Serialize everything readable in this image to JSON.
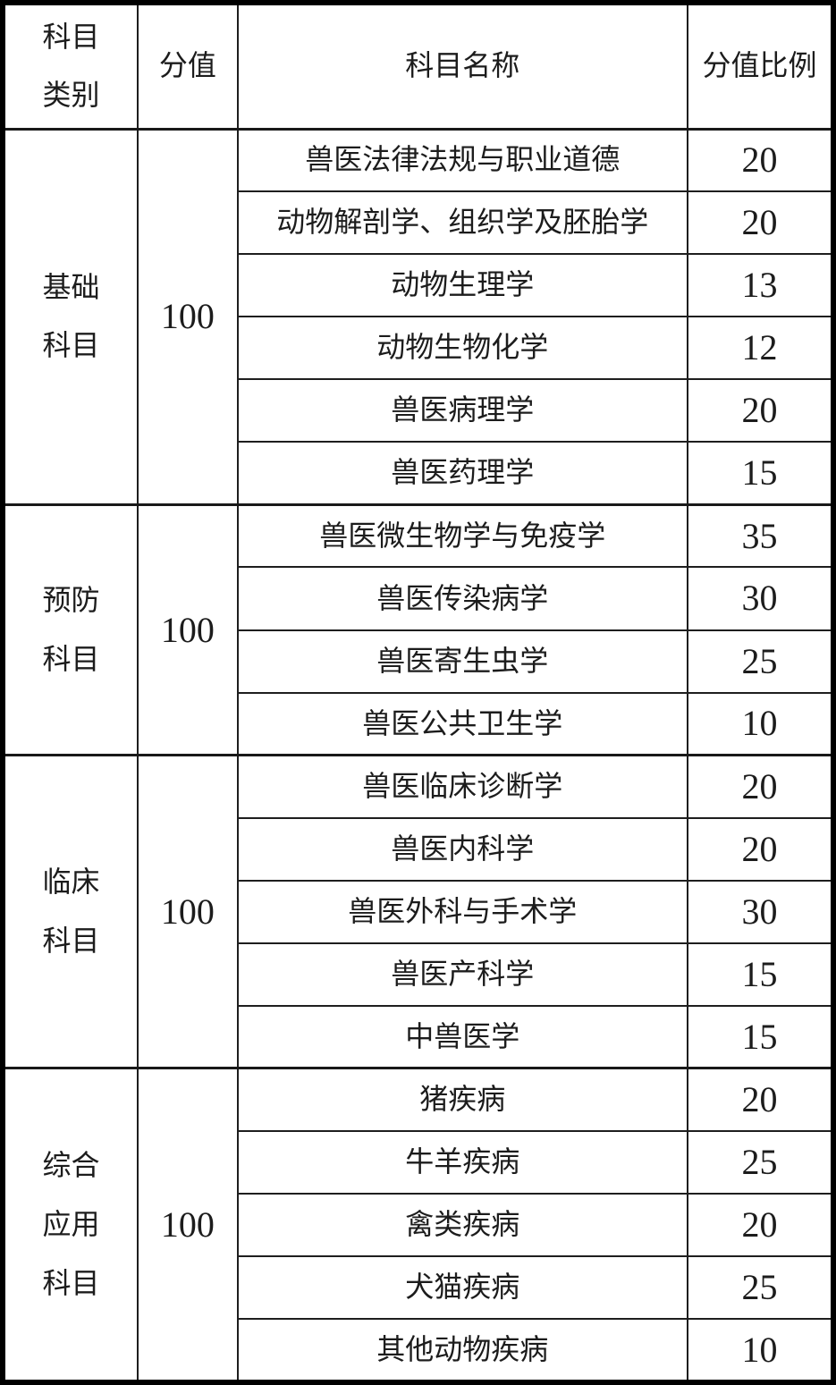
{
  "colors": {
    "text": "#1c1c1c",
    "border": "#000000",
    "table_background": "#ffffff"
  },
  "table": {
    "headers": {
      "category": "科目\n类别",
      "score": "分值",
      "subject_name": "科目名称",
      "score_ratio": "分值比例"
    },
    "sections": [
      {
        "category": "基础\n科目",
        "score": "100",
        "subjects": [
          {
            "name": "兽医法律法规与职业道德",
            "ratio": "20"
          },
          {
            "name": "动物解剖学、组织学及胚胎学",
            "ratio": "20"
          },
          {
            "name": "动物生理学",
            "ratio": "13"
          },
          {
            "name": "动物生物化学",
            "ratio": "12"
          },
          {
            "name": "兽医病理学",
            "ratio": "20"
          },
          {
            "name": "兽医药理学",
            "ratio": "15"
          }
        ]
      },
      {
        "category": "预防\n科目",
        "score": "100",
        "subjects": [
          {
            "name": "兽医微生物学与免疫学",
            "ratio": "35"
          },
          {
            "name": "兽医传染病学",
            "ratio": "30"
          },
          {
            "name": "兽医寄生虫学",
            "ratio": "25"
          },
          {
            "name": "兽医公共卫生学",
            "ratio": "10"
          }
        ]
      },
      {
        "category": "临床\n科目",
        "score": "100",
        "subjects": [
          {
            "name": "兽医临床诊断学",
            "ratio": "20"
          },
          {
            "name": "兽医内科学",
            "ratio": "20"
          },
          {
            "name": "兽医外科与手术学",
            "ratio": "30"
          },
          {
            "name": "兽医产科学",
            "ratio": "15"
          },
          {
            "name": "中兽医学",
            "ratio": "15"
          }
        ]
      },
      {
        "category": "综合\n应用\n科目",
        "score": "100",
        "subjects": [
          {
            "name": "猪疾病",
            "ratio": "20"
          },
          {
            "name": "牛羊疾病",
            "ratio": "25"
          },
          {
            "name": "禽类疾病",
            "ratio": "20"
          },
          {
            "name": "犬猫疾病",
            "ratio": "25"
          },
          {
            "name": "其他动物疾病",
            "ratio": "10"
          }
        ]
      }
    ]
  }
}
